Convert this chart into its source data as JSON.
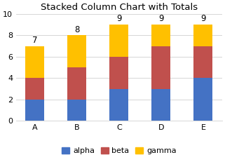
{
  "categories": [
    "A",
    "B",
    "C",
    "D",
    "E"
  ],
  "alpha": [
    2,
    2,
    3,
    3,
    4
  ],
  "beta": [
    2,
    3,
    3,
    4,
    3
  ],
  "gamma": [
    3,
    3,
    3,
    2,
    2
  ],
  "totals": [
    7,
    8,
    9,
    9,
    9
  ],
  "colors": {
    "alpha": "#4472C4",
    "beta": "#C0504D",
    "gamma": "#FFC000"
  },
  "title": "Stacked Column Chart with Totals",
  "ylim": [
    0,
    10
  ],
  "yticks": [
    0,
    2,
    4,
    6,
    8,
    10
  ],
  "bar_width": 0.45,
  "title_fontsize": 9.5,
  "tick_fontsize": 8,
  "legend_fontsize": 8,
  "total_fontsize": 8.5
}
